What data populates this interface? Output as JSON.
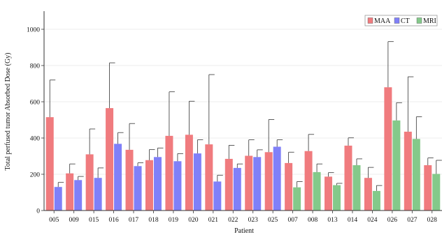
{
  "chart_data": {
    "type": "bar",
    "xlabel": "Patient",
    "ylabel": "Total perfused tumor Absorbed Dose (Gy)",
    "ylim": [
      0,
      1100
    ],
    "yticks": [
      0,
      200,
      400,
      600,
      800,
      1000
    ],
    "grid": true,
    "legend_position": "top-right",
    "colors": {
      "MAA": "#f07b7e",
      "CT": "#8080f8",
      "MRI": "#84c98a"
    },
    "categories": [
      "005",
      "009",
      "015",
      "016",
      "017",
      "018",
      "019",
      "020",
      "021",
      "022",
      "023",
      "025",
      "007",
      "008",
      "013",
      "014",
      "024",
      "026",
      "027",
      "028"
    ],
    "series": [
      {
        "name": "MAA",
        "values": [
          515,
          205,
          310,
          565,
          335,
          278,
          412,
          418,
          365,
          285,
          302,
          322,
          262,
          328,
          187,
          358,
          180,
          680,
          435,
          250
        ],
        "errors": [
          205,
          52,
          140,
          250,
          145,
          58,
          243,
          185,
          385,
          75,
          88,
          180,
          60,
          92,
          22,
          43,
          58,
          252,
          303,
          40
        ]
      },
      {
        "name": "CT",
        "values": [
          130,
          168,
          180,
          368,
          245,
          295,
          272,
          315,
          160,
          235,
          295,
          352,
          null,
          null,
          null,
          null,
          null,
          null,
          null,
          null
        ],
        "errors": [
          25,
          20,
          55,
          62,
          18,
          50,
          42,
          75,
          35,
          22,
          40,
          38,
          null,
          null,
          null,
          null,
          null,
          null,
          null,
          null
        ]
      },
      {
        "name": "MRI",
        "values": [
          null,
          null,
          null,
          null,
          null,
          null,
          null,
          null,
          null,
          null,
          null,
          null,
          128,
          212,
          140,
          250,
          108,
          497,
          395,
          202
        ],
        "errors": [
          null,
          null,
          null,
          null,
          null,
          null,
          null,
          null,
          null,
          null,
          null,
          null,
          32,
          45,
          10,
          35,
          30,
          98,
          122,
          75
        ]
      }
    ]
  }
}
